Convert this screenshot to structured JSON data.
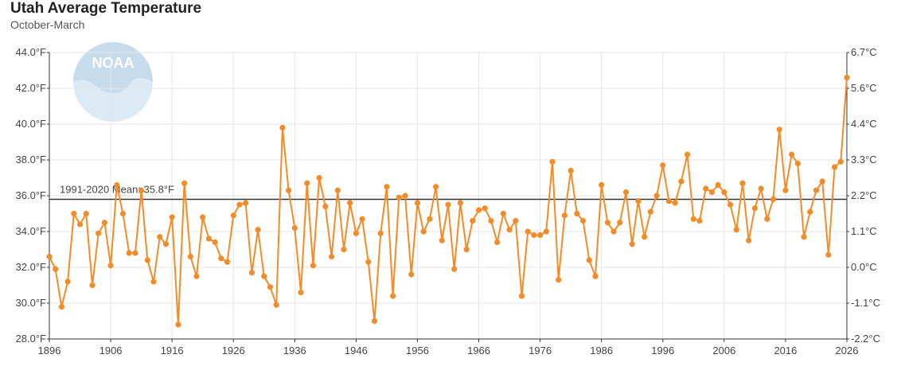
{
  "header": {
    "title": "Utah Average Temperature",
    "subtitle": "October-March"
  },
  "logo": {
    "text": "NOAA",
    "icon": "noaa-logo"
  },
  "colors": {
    "series": "#f28c28",
    "mean_line": "#333333",
    "grid": "#e6e6e6",
    "logo": "#9ecae1"
  },
  "chart_data": {
    "type": "line",
    "title": "Utah Average Temperature",
    "subtitle": "October-March",
    "x_ticks": [
      "1896",
      "1906",
      "1916",
      "1926",
      "1936",
      "1946",
      "1956",
      "1966",
      "1976",
      "1986",
      "1996",
      "2006",
      "2016",
      "2026"
    ],
    "y_left_ticks": [
      "28.0°F",
      "30.0°F",
      "32.0°F",
      "34.0°F",
      "36.0°F",
      "38.0°F",
      "40.0°F",
      "42.0°F",
      "44.0°F"
    ],
    "y_right_ticks": [
      "-2.2°C",
      "-1.1°C",
      "0.0°C",
      "1.1°C",
      "2.2°C",
      "3.3°C",
      "4.4°C",
      "5.6°C",
      "6.7°C"
    ],
    "xlim": [
      1896,
      2026
    ],
    "ylim": [
      28,
      44
    ],
    "grid": true,
    "mean": {
      "value": 35.8,
      "label": "1991-2020 Mean: 35.8°F"
    },
    "series": [
      {
        "x_start": 1896,
        "values": [
          32.6,
          31.9,
          29.8,
          31.2,
          35.0,
          34.4,
          35.0,
          31.0,
          33.9,
          34.5,
          32.1,
          36.6,
          35.0,
          32.8,
          32.8,
          36.3,
          32.4,
          31.2,
          33.7,
          33.3,
          34.8,
          28.8,
          36.7,
          32.6,
          31.5,
          34.8,
          33.6,
          33.4,
          32.5,
          32.3,
          34.9,
          35.5,
          35.6,
          31.7,
          34.1,
          31.5,
          30.9,
          29.9,
          39.8,
          36.3,
          34.2,
          30.6,
          36.7,
          32.1,
          37.0,
          35.4,
          32.6,
          36.3,
          33.0,
          35.6,
          33.9,
          34.7,
          32.3,
          29.0,
          33.9,
          36.5,
          30.4,
          35.9,
          36.0,
          31.6,
          35.6,
          34.0,
          34.7,
          36.5,
          33.5,
          35.5,
          31.9,
          35.6,
          33.0,
          34.6,
          35.2,
          35.3,
          34.6,
          33.4,
          35.0,
          34.1,
          34.6,
          30.4,
          34.0,
          33.8,
          33.8,
          34.0,
          37.9,
          31.3,
          34.9,
          37.4,
          35.0,
          34.6,
          32.4,
          31.5,
          36.6,
          34.5,
          34.0,
          34.5,
          36.2,
          33.3,
          35.7,
          33.7,
          35.1,
          36.0,
          37.7,
          35.7,
          35.6,
          36.8,
          38.3,
          34.7,
          34.6,
          36.4,
          36.2,
          36.6,
          36.2,
          35.5,
          34.1,
          36.7,
          33.5,
          35.3,
          36.4,
          34.7,
          35.8,
          39.7,
          36.3,
          38.3,
          37.8,
          33.7,
          35.1,
          36.3,
          36.8,
          32.7,
          37.6,
          37.9,
          42.6
        ]
      }
    ]
  }
}
